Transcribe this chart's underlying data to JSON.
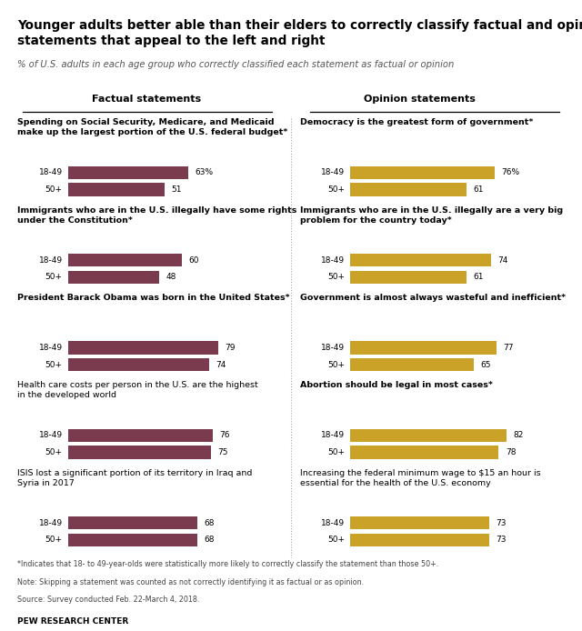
{
  "title": "Younger adults better able than their elders to correctly classify factual and opinion\nstatements that appeal to the left and right",
  "subtitle": "% of U.S. adults in each age group who correctly classified each statement as factual or opinion",
  "factual_header": "Factual statements",
  "opinion_header": "Opinion statements",
  "factual_statements": [
    {
      "label": "Spending on Social Security, Medicare, and Medicaid\nmake up the largest portion of the U.S. federal budget*",
      "young": 63,
      "old": 51,
      "young_label": "63%",
      "old_label": "51"
    },
    {
      "label": "Immigrants who are in the U.S. illegally have some rights\nunder the Constitution*",
      "young": 60,
      "old": 48,
      "young_label": "60",
      "old_label": "48"
    },
    {
      "label": "President Barack Obama was born in the United States*",
      "young": 79,
      "old": 74,
      "young_label": "79",
      "old_label": "74"
    },
    {
      "label": "Health care costs per person in the U.S. are the highest\nin the developed world",
      "young": 76,
      "old": 75,
      "young_label": "76",
      "old_label": "75"
    },
    {
      "label": "ISIS lost a significant portion of its territory in Iraq and\nSyria in 2017",
      "young": 68,
      "old": 68,
      "young_label": "68",
      "old_label": "68"
    }
  ],
  "opinion_statements": [
    {
      "label": "Democracy is the greatest form of government*",
      "young": 76,
      "old": 61,
      "young_label": "76%",
      "old_label": "61"
    },
    {
      "label": "Immigrants who are in the U.S. illegally are a very big\nproblem for the country today*",
      "young": 74,
      "old": 61,
      "young_label": "74",
      "old_label": "61"
    },
    {
      "label": "Government is almost always wasteful and inefficient*",
      "young": 77,
      "old": 65,
      "young_label": "77",
      "old_label": "65"
    },
    {
      "label": "Abortion should be legal in most cases*",
      "young": 82,
      "old": 78,
      "young_label": "82",
      "old_label": "78"
    },
    {
      "label": "Increasing the federal minimum wage to $15 an hour is\nessential for the health of the U.S. economy",
      "young": 73,
      "old": 73,
      "young_label": "73",
      "old_label": "73"
    }
  ],
  "factual_color": "#7B3B4E",
  "opinion_color": "#C9A227",
  "footnote1": "*Indicates that 18- to 49-year-olds were statistically more likely to correctly classify the statement than those 50+.",
  "footnote2": "Note: Skipping a statement was counted as not correctly identifying it as factual or as opinion.",
  "footnote3": "Source: Survey conducted Feb. 22-March 4, 2018.",
  "source": "PEW RESEARCH CENTER",
  "young_label": "18-49",
  "old_label": "50+"
}
